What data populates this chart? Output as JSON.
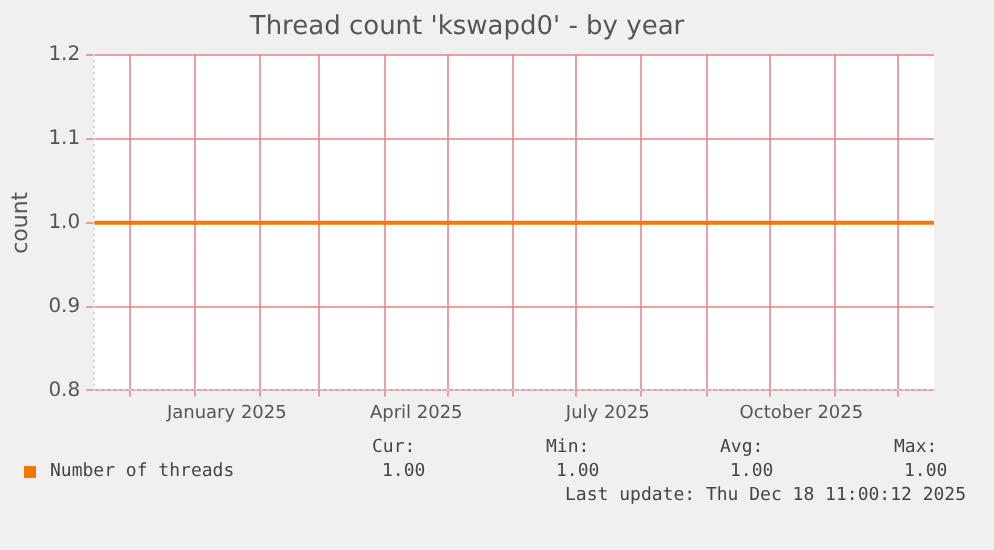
{
  "chart_data": {
    "type": "line",
    "title": "Thread count 'kswapd0' - by year",
    "ylabel": "count",
    "xlim": [
      "2024-11-14",
      "2025-12-18"
    ],
    "xticks": [
      {
        "value": "2024-12-01",
        "label": null
      },
      {
        "value": "2025-01-01",
        "label": null
      },
      {
        "value": "2025-01-16",
        "label": "January 2025"
      },
      {
        "value": "2025-02-01",
        "label": null
      },
      {
        "value": "2025-03-01",
        "label": null
      },
      {
        "value": "2025-04-01",
        "label": null
      },
      {
        "value": "2025-04-16",
        "label": "April 2025"
      },
      {
        "value": "2025-05-01",
        "label": null
      },
      {
        "value": "2025-06-01",
        "label": null
      },
      {
        "value": "2025-07-01",
        "label": null
      },
      {
        "value": "2025-07-16",
        "label": "July 2025"
      },
      {
        "value": "2025-08-01",
        "label": null
      },
      {
        "value": "2025-09-01",
        "label": null
      },
      {
        "value": "2025-10-01",
        "label": null
      },
      {
        "value": "2025-10-16",
        "label": "October 2025"
      },
      {
        "value": "2025-11-01",
        "label": null
      },
      {
        "value": "2025-12-01",
        "label": null
      }
    ],
    "ylim": [
      0.8,
      1.2
    ],
    "yticks": [
      {
        "value": 0.8,
        "label": "0.8"
      },
      {
        "value": 0.9,
        "label": "0.9"
      },
      {
        "value": 1,
        "label": "1.0"
      },
      {
        "value": 1.1,
        "label": "1.1"
      },
      {
        "value": 1.2,
        "label": "1.2"
      }
    ],
    "grid": true,
    "legend": "bottom",
    "marker": "none",
    "line_style": "solid",
    "series": [
      {
        "name": "Number of threads",
        "color": "#f57900",
        "x": [
          "2024-11-14",
          "2025-12-18"
        ],
        "values": [
          1,
          1
        ]
      }
    ],
    "annotations": [
      "Cur:",
      "Min:",
      "Avg:",
      "Max:",
      "1.00",
      "1.00",
      "1.00",
      "1.00",
      "Last update: Thu Dec 18 11:00:12 2025"
    ]
  }
}
